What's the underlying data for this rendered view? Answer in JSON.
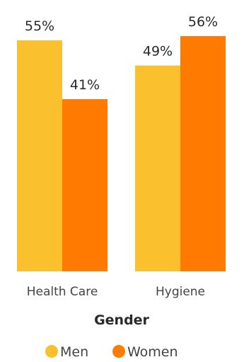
{
  "chart_data": {
    "type": "bar",
    "categories": [
      "Health Care",
      "Hygiene"
    ],
    "series": [
      {
        "name": "Men",
        "values": [
          55,
          49
        ],
        "labels": [
          "55%",
          "49%"
        ],
        "color": "#FBC02D"
      },
      {
        "name": "Women",
        "values": [
          41,
          56
        ],
        "labels": [
          "41%",
          "56%"
        ],
        "color": "#FF7A00"
      }
    ],
    "xlabel": "Gender",
    "ylabel": "",
    "ylim": [
      0,
      56
    ],
    "grid": false,
    "legend_position": "bottom-center"
  }
}
